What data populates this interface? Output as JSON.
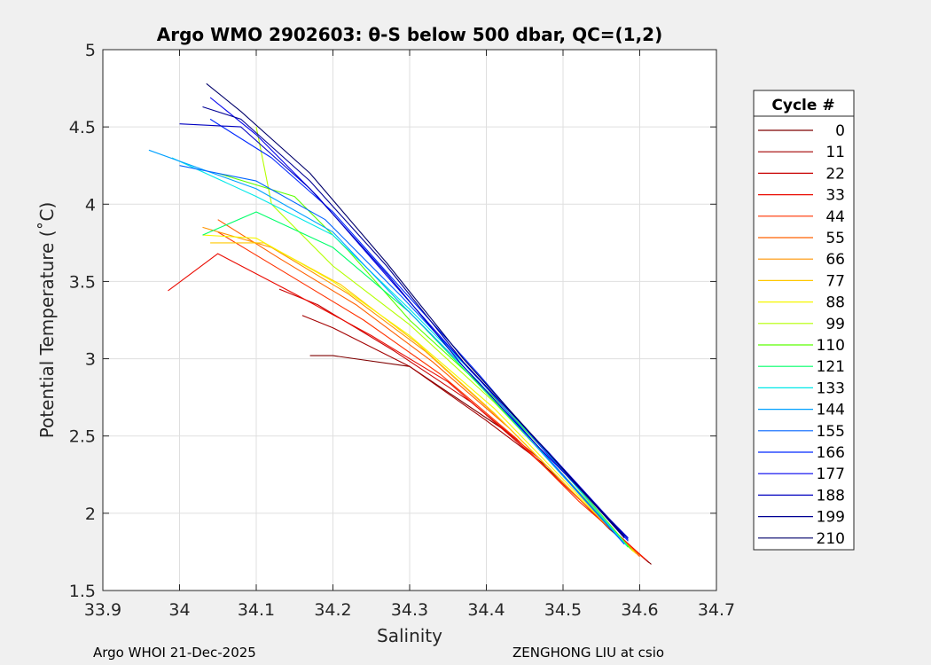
{
  "chart_data": {
    "type": "line",
    "title": "Argo WMO 2902603: θ-S below 500 dbar,  QC=(1,2)",
    "xlabel": "Salinity",
    "ylabel": "Potential Temperature (˚C)",
    "xlim": [
      33.9,
      34.7
    ],
    "ylim": [
      1.5,
      5
    ],
    "xticks": [
      33.9,
      34,
      34.1,
      34.2,
      34.3,
      34.4,
      34.5,
      34.6,
      34.7
    ],
    "xtick_labels": [
      "33.9",
      "34",
      "34.1",
      "34.2",
      "34.3",
      "34.4",
      "34.5",
      "34.6",
      "34.7"
    ],
    "yticks": [
      1.5,
      2,
      2.5,
      3,
      3.5,
      4,
      4.5,
      5
    ],
    "ytick_labels": [
      "1.5",
      "2",
      "2.5",
      "3",
      "3.5",
      "4",
      "4.5",
      "5"
    ],
    "grid": true,
    "legend_title": "Cycle #",
    "legend_position": "right",
    "colormap": "jet",
    "series": [
      {
        "name": "0",
        "color": "#7f0000",
        "values": [
          [
            34.615,
            1.67
          ],
          [
            34.56,
            1.9
          ],
          [
            34.5,
            2.2
          ],
          [
            34.42,
            2.55
          ],
          [
            34.3,
            2.95
          ],
          [
            34.2,
            3.02
          ],
          [
            34.17,
            3.02
          ]
        ]
      },
      {
        "name": "11",
        "color": "#a30000",
        "values": [
          [
            34.612,
            1.68
          ],
          [
            34.55,
            1.95
          ],
          [
            34.48,
            2.3
          ],
          [
            34.4,
            2.6
          ],
          [
            34.3,
            2.95
          ],
          [
            34.2,
            3.2
          ],
          [
            34.16,
            3.28
          ]
        ]
      },
      {
        "name": "22",
        "color": "#c80000",
        "values": [
          [
            34.61,
            1.69
          ],
          [
            34.54,
            2.0
          ],
          [
            34.47,
            2.35
          ],
          [
            34.38,
            2.72
          ],
          [
            34.28,
            3.05
          ],
          [
            34.18,
            3.35
          ],
          [
            34.13,
            3.45
          ]
        ]
      },
      {
        "name": "33",
        "color": "#ea0a00",
        "values": [
          [
            34.608,
            1.7
          ],
          [
            34.53,
            2.05
          ],
          [
            34.45,
            2.42
          ],
          [
            34.35,
            2.85
          ],
          [
            34.25,
            3.15
          ],
          [
            34.15,
            3.42
          ],
          [
            34.05,
            3.68
          ],
          [
            33.985,
            3.44
          ]
        ]
      },
      {
        "name": "44",
        "color": "#ff3200",
        "values": [
          [
            34.605,
            1.71
          ],
          [
            34.52,
            2.08
          ],
          [
            34.44,
            2.48
          ],
          [
            34.34,
            2.9
          ],
          [
            34.24,
            3.25
          ],
          [
            34.14,
            3.55
          ],
          [
            34.05,
            3.82
          ]
        ]
      },
      {
        "name": "55",
        "color": "#ff6000",
        "values": [
          [
            34.6,
            1.72
          ],
          [
            34.52,
            2.1
          ],
          [
            34.43,
            2.55
          ],
          [
            34.33,
            2.98
          ],
          [
            34.23,
            3.35
          ],
          [
            34.13,
            3.65
          ],
          [
            34.05,
            3.9
          ]
        ]
      },
      {
        "name": "66",
        "color": "#ff9400",
        "values": [
          [
            34.598,
            1.73
          ],
          [
            34.51,
            2.15
          ],
          [
            34.42,
            2.6
          ],
          [
            34.32,
            3.05
          ],
          [
            34.22,
            3.42
          ],
          [
            34.12,
            3.72
          ],
          [
            34.03,
            3.85
          ]
        ]
      },
      {
        "name": "77",
        "color": "#ffc800",
        "values": [
          [
            34.595,
            1.74
          ],
          [
            34.5,
            2.2
          ],
          [
            34.41,
            2.65
          ],
          [
            34.31,
            3.1
          ],
          [
            34.21,
            3.48
          ],
          [
            34.11,
            3.75
          ],
          [
            34.04,
            3.75
          ]
        ]
      },
      {
        "name": "88",
        "color": "#f6f700",
        "values": [
          [
            34.592,
            1.75
          ],
          [
            34.5,
            2.22
          ],
          [
            34.41,
            2.68
          ],
          [
            34.3,
            3.15
          ],
          [
            34.2,
            3.5
          ],
          [
            34.1,
            3.78
          ],
          [
            34.03,
            3.8
          ]
        ]
      },
      {
        "name": "99",
        "color": "#b4ff00",
        "values": [
          [
            34.59,
            1.76
          ],
          [
            34.5,
            2.25
          ],
          [
            34.41,
            2.72
          ],
          [
            34.3,
            3.22
          ],
          [
            34.2,
            3.6
          ],
          [
            34.12,
            4.0
          ],
          [
            34.1,
            4.5
          ]
        ]
      },
      {
        "name": "110",
        "color": "#5aff00",
        "values": [
          [
            34.588,
            1.77
          ],
          [
            34.5,
            2.28
          ],
          [
            34.41,
            2.75
          ],
          [
            34.3,
            3.25
          ],
          [
            34.22,
            3.7
          ],
          [
            34.15,
            4.05
          ],
          [
            34.05,
            4.2
          ]
        ]
      },
      {
        "name": "121",
        "color": "#00ff6a",
        "values": [
          [
            34.585,
            1.78
          ],
          [
            34.49,
            2.3
          ],
          [
            34.4,
            2.78
          ],
          [
            34.3,
            3.3
          ],
          [
            34.2,
            3.72
          ],
          [
            34.1,
            3.95
          ],
          [
            34.03,
            3.8
          ]
        ]
      },
      {
        "name": "133",
        "color": "#00e8e8",
        "values": [
          [
            34.583,
            1.79
          ],
          [
            34.49,
            2.33
          ],
          [
            34.4,
            2.82
          ],
          [
            34.3,
            3.32
          ],
          [
            34.2,
            3.8
          ],
          [
            34.1,
            4.05
          ],
          [
            33.99,
            4.3
          ]
        ]
      },
      {
        "name": "144",
        "color": "#00a0ff",
        "values": [
          [
            34.58,
            1.8
          ],
          [
            34.48,
            2.35
          ],
          [
            34.39,
            2.85
          ],
          [
            34.29,
            3.35
          ],
          [
            34.2,
            3.82
          ],
          [
            34.1,
            4.1
          ],
          [
            33.96,
            4.35
          ]
        ]
      },
      {
        "name": "155",
        "color": "#0064ff",
        "values": [
          [
            34.58,
            1.8
          ],
          [
            34.48,
            2.36
          ],
          [
            34.39,
            2.87
          ],
          [
            34.29,
            3.4
          ],
          [
            34.19,
            3.9
          ],
          [
            34.1,
            4.15
          ],
          [
            34.0,
            4.25
          ]
        ]
      },
      {
        "name": "166",
        "color": "#0028ff",
        "values": [
          [
            34.585,
            1.82
          ],
          [
            34.48,
            2.38
          ],
          [
            34.39,
            2.9
          ],
          [
            34.29,
            3.45
          ],
          [
            34.2,
            3.95
          ],
          [
            34.12,
            4.3
          ],
          [
            34.04,
            4.55
          ]
        ]
      },
      {
        "name": "177",
        "color": "#0000ee",
        "values": [
          [
            34.585,
            1.83
          ],
          [
            34.48,
            2.4
          ],
          [
            34.38,
            2.92
          ],
          [
            34.28,
            3.48
          ],
          [
            34.18,
            4.05
          ],
          [
            34.1,
            4.45
          ],
          [
            34.04,
            4.69
          ]
        ]
      },
      {
        "name": "188",
        "color": "#0000c0",
        "values": [
          [
            34.585,
            1.84
          ],
          [
            34.47,
            2.42
          ],
          [
            34.37,
            2.95
          ],
          [
            34.27,
            3.55
          ],
          [
            34.17,
            4.1
          ],
          [
            34.08,
            4.5
          ],
          [
            34.0,
            4.52
          ]
        ]
      },
      {
        "name": "199",
        "color": "#000094",
        "values": [
          [
            34.58,
            1.84
          ],
          [
            34.47,
            2.45
          ],
          [
            34.37,
            2.98
          ],
          [
            34.27,
            3.6
          ],
          [
            34.17,
            4.15
          ],
          [
            34.08,
            4.55
          ],
          [
            34.03,
            4.63
          ]
        ]
      },
      {
        "name": "210",
        "color": "#00006a",
        "values": [
          [
            34.58,
            1.85
          ],
          [
            34.47,
            2.45
          ],
          [
            34.37,
            3.0
          ],
          [
            34.27,
            3.62
          ],
          [
            34.17,
            4.2
          ],
          [
            34.08,
            4.6
          ],
          [
            34.035,
            4.78
          ]
        ]
      }
    ]
  },
  "footer": {
    "left": "Argo WHOI 21-Dec-2025",
    "right": "ZENGHONG LIU at csio"
  }
}
